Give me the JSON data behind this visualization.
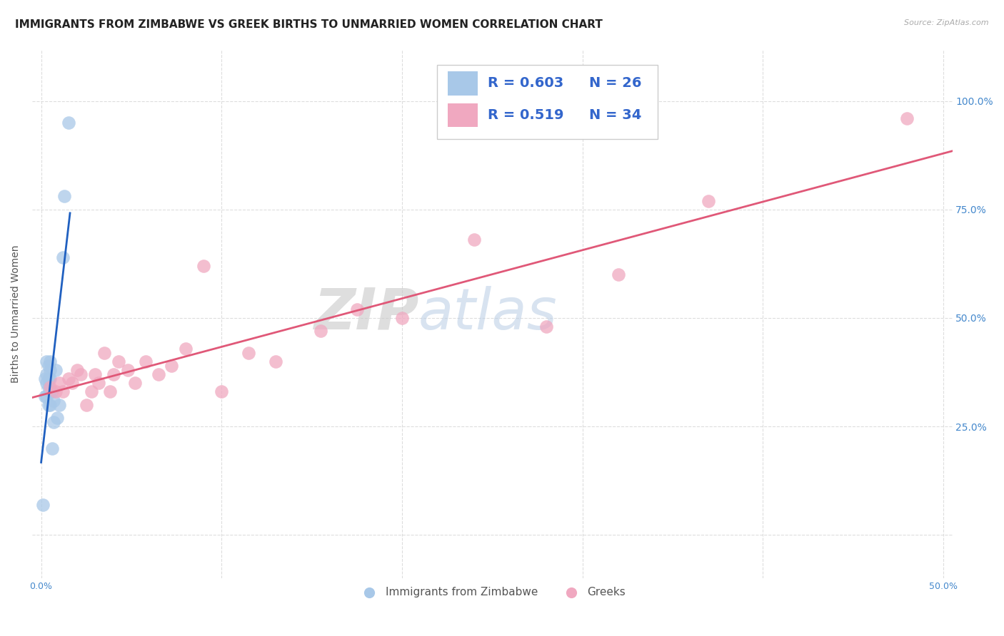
{
  "title": "IMMIGRANTS FROM ZIMBABWE VS GREEK BIRTHS TO UNMARRIED WOMEN CORRELATION CHART",
  "source": "Source: ZipAtlas.com",
  "ylabel": "Births to Unmarried Women",
  "xlim_min": -0.005,
  "xlim_max": 0.505,
  "ylim_min": -0.1,
  "ylim_max": 1.12,
  "xtick_vals": [
    0.0,
    0.1,
    0.2,
    0.3,
    0.4,
    0.5
  ],
  "ytick_vals": [
    0.0,
    0.25,
    0.5,
    0.75,
    1.0
  ],
  "xtick_labels": [
    "0.0%",
    "",
    "",
    "",
    "",
    "50.0%"
  ],
  "ytick_labels": [
    "",
    "25.0%",
    "50.0%",
    "75.0%",
    "100.0%"
  ],
  "blue_color": "#a8c8e8",
  "pink_color": "#f0a8c0",
  "trendline_blue": "#2060c0",
  "trendline_pink": "#e05878",
  "legend_R_blue": "0.603",
  "legend_N_blue": "26",
  "legend_R_pink": "0.519",
  "legend_N_pink": "34",
  "blue_scatter_x": [
    0.001,
    0.002,
    0.002,
    0.003,
    0.003,
    0.003,
    0.003,
    0.004,
    0.004,
    0.004,
    0.004,
    0.005,
    0.005,
    0.005,
    0.005,
    0.005,
    0.006,
    0.006,
    0.007,
    0.007,
    0.008,
    0.009,
    0.01,
    0.012,
    0.013,
    0.015
  ],
  "blue_scatter_y": [
    0.07,
    0.32,
    0.36,
    0.32,
    0.35,
    0.37,
    0.4,
    0.3,
    0.34,
    0.36,
    0.39,
    0.3,
    0.33,
    0.36,
    0.38,
    0.4,
    0.2,
    0.33,
    0.26,
    0.31,
    0.38,
    0.27,
    0.3,
    0.64,
    0.78,
    0.95
  ],
  "pink_scatter_x": [
    0.005,
    0.008,
    0.01,
    0.012,
    0.015,
    0.017,
    0.02,
    0.022,
    0.025,
    0.028,
    0.03,
    0.032,
    0.035,
    0.038,
    0.04,
    0.043,
    0.048,
    0.052,
    0.058,
    0.065,
    0.072,
    0.08,
    0.09,
    0.1,
    0.115,
    0.13,
    0.155,
    0.175,
    0.2,
    0.24,
    0.28,
    0.32,
    0.37,
    0.48
  ],
  "pink_scatter_y": [
    0.34,
    0.33,
    0.35,
    0.33,
    0.36,
    0.35,
    0.38,
    0.37,
    0.3,
    0.33,
    0.37,
    0.35,
    0.42,
    0.33,
    0.37,
    0.4,
    0.38,
    0.35,
    0.4,
    0.37,
    0.39,
    0.43,
    0.62,
    0.33,
    0.42,
    0.4,
    0.47,
    0.52,
    0.5,
    0.68,
    0.48,
    0.6,
    0.77,
    0.96
  ],
  "grid_color": "#dddddd",
  "background_color": "#ffffff",
  "title_fontsize": 11,
  "tick_fontsize": 9,
  "right_tick_color": "#4488cc"
}
